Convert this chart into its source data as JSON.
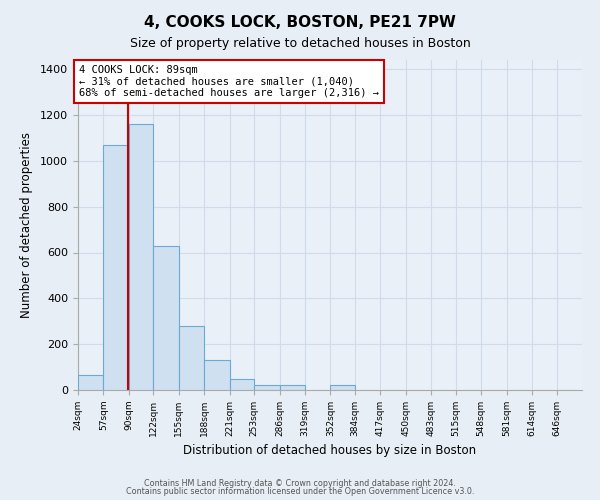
{
  "title": "4, COOKS LOCK, BOSTON, PE21 7PW",
  "subtitle": "Size of property relative to detached houses in Boston",
  "xlabel": "Distribution of detached houses by size in Boston",
  "ylabel": "Number of detached properties",
  "bar_color": "#cfe0f0",
  "bar_edge_color": "#6aaad4",
  "grid_color": "#d0dce8",
  "background_color": "#e8eef5",
  "plot_bg_color": "#eaf0f8",
  "annotation_box_color": "#cc0000",
  "red_line_x": 89,
  "annotation_title": "4 COOKS LOCK: 89sqm",
  "annotation_line1": "← 31% of detached houses are smaller (1,040)",
  "annotation_line2": "68% of semi-detached houses are larger (2,316) →",
  "footer1": "Contains HM Land Registry data © Crown copyright and database right 2024.",
  "footer2": "Contains public sector information licensed under the Open Government Licence v3.0.",
  "bin_edges": [
    24,
    57,
    90,
    122,
    155,
    188,
    221,
    253,
    286,
    319,
    352,
    384,
    417,
    450,
    483,
    515,
    548,
    581,
    614,
    646,
    679
  ],
  "bar_heights": [
    65,
    1070,
    1160,
    630,
    280,
    130,
    47,
    20,
    20,
    0,
    20,
    0,
    0,
    0,
    0,
    0,
    0,
    0,
    0,
    0
  ],
  "ylim": [
    0,
    1440
  ],
  "yticks": [
    0,
    200,
    400,
    600,
    800,
    1000,
    1200,
    1400
  ],
  "figsize": [
    6.0,
    5.0
  ],
  "dpi": 100
}
